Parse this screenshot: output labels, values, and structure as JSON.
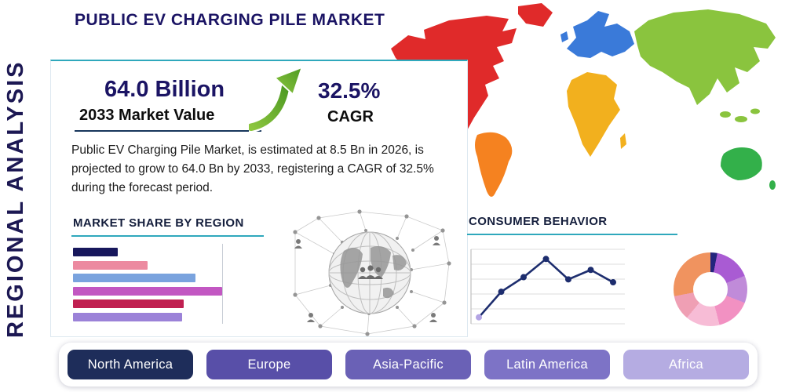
{
  "header": {
    "title": "PUBLIC EV CHARGING PILE MARKET"
  },
  "sidebar": {
    "vertical_label": "REGIONAL ANALYSIS"
  },
  "highlight": {
    "market_value": "64.0 Billion",
    "market_value_caption": "2033 Market Value",
    "cagr_value": "32.5%",
    "cagr_caption": "CAGR",
    "description": "Public EV Charging Pile Market, is estimated at 8.5 Bn in 2026, is projected to grow to 64.0 Bn by 2033, registering a CAGR of 32.5% during the forecast period."
  },
  "sections": {
    "market_share_title": "MARKET SHARE BY REGION",
    "consumer_behavior_title": "CONSUMER BEHAVIOR"
  },
  "accent": {
    "teal": "#2fa8bc",
    "navy": "#1b1464",
    "arrow_green": "#6db33f"
  },
  "region_buttons": [
    {
      "label": "North America",
      "color": "#1e2d5a"
    },
    {
      "label": "Europe",
      "color": "#584fa8"
    },
    {
      "label": "Asia-Pacific",
      "color": "#6a61b6"
    },
    {
      "label": "Latin America",
      "color": "#7d73c6"
    },
    {
      "label": "Africa",
      "color": "#b5ace2"
    }
  ],
  "map": {
    "continents": [
      {
        "name": "north-america",
        "color": "#e02a2a"
      },
      {
        "name": "greenland",
        "color": "#e02a2a"
      },
      {
        "name": "south-america",
        "color": "#f58220"
      },
      {
        "name": "europe",
        "color": "#3a7ad9"
      },
      {
        "name": "africa",
        "color": "#f2b01e"
      },
      {
        "name": "asia",
        "color": "#8ac43e"
      },
      {
        "name": "australia",
        "color": "#33b04a"
      }
    ]
  },
  "chart_data": [
    {
      "type": "bar",
      "title": "MARKET SHARE BY REGION",
      "orientation": "horizontal",
      "series": [
        {
          "name": "1",
          "value": 30,
          "color": "#17175c"
        },
        {
          "name": "2",
          "value": 50,
          "color": "#ec8aa0"
        },
        {
          "name": "3",
          "value": 82,
          "color": "#7aa3de"
        },
        {
          "name": "4",
          "value": 100,
          "color": "#c257c2"
        },
        {
          "name": "5",
          "value": 74,
          "color": "#c02051"
        },
        {
          "name": "6",
          "value": 73,
          "color": "#9b82d8"
        }
      ],
      "note": "bars unlabeled in source; values are relative lengths as % of longest bar"
    },
    {
      "type": "line",
      "title": "CONSUMER BEHAVIOR",
      "x": [
        1,
        2,
        3,
        4,
        5,
        6,
        7
      ],
      "values": [
        10,
        45,
        65,
        90,
        62,
        75,
        58
      ],
      "line_color": "#1d2d6e",
      "marker_color": "#1d2d6e",
      "first_marker_color": "#b3a4e4",
      "grid": true,
      "note": "axes unlabeled in source; values are relative heights 0-100"
    },
    {
      "type": "donut",
      "slices": [
        {
          "color": "#23257d",
          "value": 3
        },
        {
          "color": "#a95bd3",
          "value": 16
        },
        {
          "color": "#c08bd9",
          "value": 12
        },
        {
          "color": "#f291c2",
          "value": 15
        },
        {
          "color": "#f7bcd6",
          "value": 15
        },
        {
          "color": "#ef9fb4",
          "value": 11
        },
        {
          "color": "#f0935f",
          "value": 28
        }
      ],
      "note": "donut unlabeled in source; slice shares estimated from arc angles"
    }
  ]
}
